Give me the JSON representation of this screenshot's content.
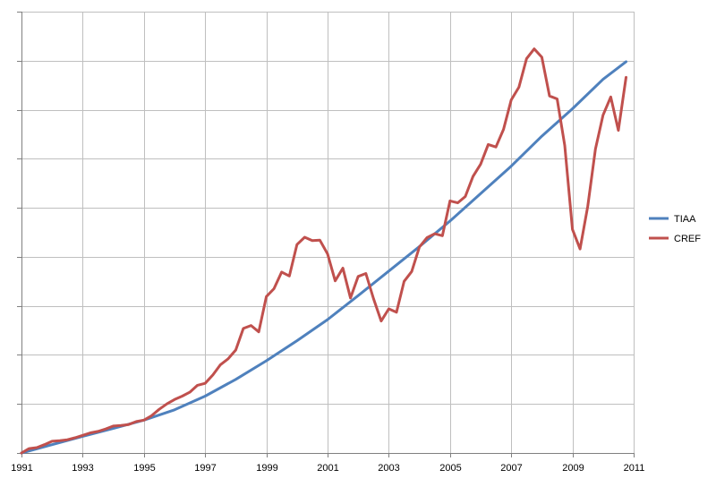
{
  "chart_data": {
    "type": "line",
    "title": "",
    "xlabel": "",
    "ylabel": "",
    "xlim": [
      1991,
      2011
    ],
    "ylim": [
      0,
      9
    ],
    "x_tick_labels": [
      "1991",
      "1993",
      "1995",
      "1997",
      "1999",
      "2001",
      "2003",
      "2005",
      "2007",
      "2009",
      "2011"
    ],
    "y_ticks_labeled": false,
    "grid": true,
    "legend": "right",
    "series": [
      {
        "name": "TIAA",
        "color": "#4F81BD",
        "x": [
          1991,
          1992,
          1993,
          1994,
          1995,
          1996,
          1997,
          1998,
          1999,
          2000,
          2001,
          2002,
          2003,
          2004,
          2005,
          2006,
          2007,
          2008,
          2009,
          2010,
          2010.75
        ],
        "y": [
          0.0,
          0.17,
          0.34,
          0.5,
          0.67,
          0.88,
          1.16,
          1.5,
          1.88,
          2.29,
          2.72,
          3.21,
          3.71,
          4.21,
          4.73,
          5.29,
          5.85,
          6.46,
          7.02,
          7.62,
          7.98
        ]
      },
      {
        "name": "CREF",
        "color": "#C0504D",
        "x": [
          1991,
          1991.25,
          1991.5,
          1991.75,
          1992,
          1992.25,
          1992.5,
          1992.75,
          1993,
          1993.25,
          1993.5,
          1993.75,
          1994,
          1994.25,
          1994.5,
          1994.75,
          1995,
          1995.25,
          1995.5,
          1995.75,
          1996,
          1996.25,
          1996.5,
          1996.75,
          1997,
          1997.25,
          1997.5,
          1997.75,
          1998,
          1998.25,
          1998.5,
          1998.75,
          1999,
          1999.25,
          1999.5,
          1999.75,
          2000,
          2000.25,
          2000.5,
          2000.75,
          2001,
          2001.25,
          2001.5,
          2001.75,
          2002,
          2002.25,
          2002.5,
          2002.75,
          2003,
          2003.25,
          2003.5,
          2003.75,
          2004,
          2004.25,
          2004.5,
          2004.75,
          2005,
          2005.25,
          2005.5,
          2005.75,
          2006,
          2006.25,
          2006.5,
          2006.75,
          2007,
          2007.25,
          2007.5,
          2007.75,
          2008,
          2008.25,
          2008.5,
          2008.75,
          2009,
          2009.25,
          2009.5,
          2009.75,
          2010,
          2010.25,
          2010.5,
          2010.75
        ],
        "y": [
          0.0,
          0.09,
          0.11,
          0.17,
          0.24,
          0.25,
          0.27,
          0.31,
          0.36,
          0.41,
          0.44,
          0.49,
          0.55,
          0.56,
          0.58,
          0.64,
          0.67,
          0.76,
          0.89,
          1.0,
          1.09,
          1.16,
          1.24,
          1.38,
          1.42,
          1.59,
          1.8,
          1.92,
          2.1,
          2.54,
          2.6,
          2.47,
          3.19,
          3.35,
          3.69,
          3.61,
          4.25,
          4.4,
          4.33,
          4.34,
          4.06,
          3.51,
          3.77,
          3.16,
          3.6,
          3.66,
          3.15,
          2.69,
          2.94,
          2.87,
          3.5,
          3.7,
          4.2,
          4.39,
          4.47,
          4.43,
          5.14,
          5.1,
          5.23,
          5.64,
          5.89,
          6.29,
          6.24,
          6.6,
          7.2,
          7.46,
          8.04,
          8.24,
          8.07,
          7.28,
          7.22,
          6.27,
          4.56,
          4.16,
          5.03,
          6.2,
          6.89,
          7.26,
          6.58,
          7.66
        ]
      }
    ]
  }
}
